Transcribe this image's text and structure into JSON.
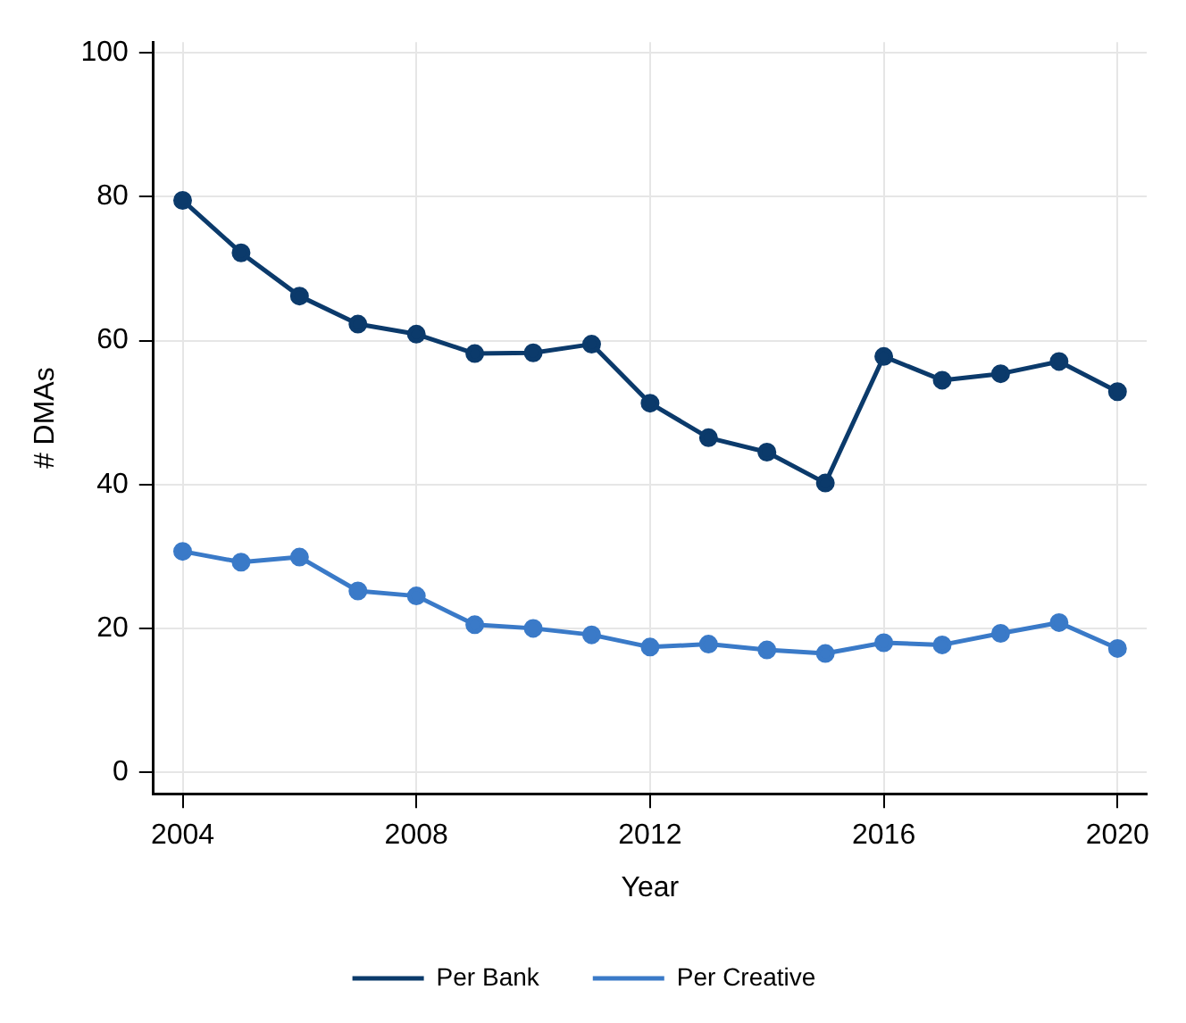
{
  "chart_data": {
    "type": "line",
    "xlabel": "Year",
    "ylabel": "# DMAs",
    "x": [
      2004,
      2005,
      2006,
      2007,
      2008,
      2009,
      2010,
      2011,
      2012,
      2013,
      2014,
      2015,
      2016,
      2017,
      2018,
      2019,
      2020
    ],
    "series": [
      {
        "name": "Per Bank",
        "color": "#0b3a6b",
        "values": [
          79.5,
          72.2,
          66.2,
          62.3,
          60.9,
          58.2,
          58.3,
          59.5,
          51.3,
          46.5,
          44.5,
          40.2,
          57.8,
          54.5,
          55.4,
          57.1,
          52.9
        ]
      },
      {
        "name": "Per Creative",
        "color": "#3a7ac8",
        "values": [
          30.7,
          29.2,
          29.9,
          25.2,
          24.5,
          20.5,
          20.0,
          19.1,
          17.4,
          17.8,
          17.0,
          16.5,
          18.0,
          17.7,
          19.3,
          20.8,
          17.2
        ]
      }
    ],
    "xlim": [
      2003.5,
      2020.5
    ],
    "xticks": [
      2004,
      2008,
      2012,
      2016,
      2020
    ],
    "ylim": [
      -3,
      101.5
    ],
    "yticks": [
      0,
      20,
      40,
      60,
      80,
      100
    ],
    "grid": true,
    "legend": "bottom",
    "marker": "circle",
    "line_style": "solid"
  }
}
